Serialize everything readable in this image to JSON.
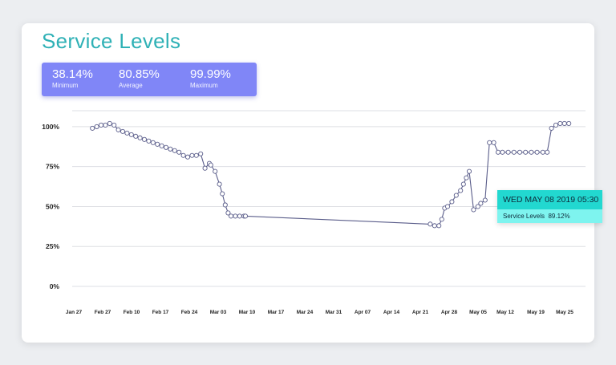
{
  "title": "Service Levels",
  "stats": [
    {
      "value": "38.14%",
      "label": "Minimum"
    },
    {
      "value": "80.85%",
      "label": "Average"
    },
    {
      "value": "99.99%",
      "label": "Maximum"
    }
  ],
  "tooltip": {
    "date": "WED MAY 08 2019 05:30",
    "series": "Service Levels",
    "value": "89.12%"
  },
  "colors": {
    "title": "#2fb1b6",
    "stats_bg": "#8086f7",
    "line": "#5a5d8a",
    "tooltip_head": "#22d8d0",
    "tooltip_body": "#7ef4ef"
  },
  "chart_data": {
    "type": "line",
    "title": "",
    "xlabel": "",
    "ylabel": "",
    "x_ticks": [
      "Jan 27",
      "Feb 27",
      "Feb 10",
      "Feb 17",
      "Feb 24",
      "Mar 03",
      "Mar 10",
      "Mar 17",
      "Mar 24",
      "Mar 31",
      "Apr 07",
      "Apr 14",
      "Apr 21",
      "Apr 28",
      "May 05",
      "May 12",
      "May 19",
      "May 25"
    ],
    "y_ticks": [
      "0%",
      "25%",
      "50%",
      "75%",
      "100%"
    ],
    "ylim": [
      0,
      110
    ],
    "x_domain": [
      0,
      17.6
    ],
    "grid": true,
    "series": [
      {
        "x": [
          0.7,
          0.85,
          1.0,
          1.15,
          1.3,
          1.45,
          1.6,
          1.75,
          1.9,
          2.05,
          2.2,
          2.35,
          2.5,
          2.65,
          2.8,
          2.95,
          3.1,
          3.25,
          3.4,
          3.55,
          3.7,
          3.85,
          4.0,
          4.15,
          4.3,
          4.45,
          4.6,
          4.75,
          4.8,
          4.95,
          5.1,
          5.2,
          5.3,
          5.4,
          5.5,
          5.65,
          5.8,
          5.95,
          6.0,
          12.4,
          12.55,
          12.7,
          12.8,
          12.9,
          13.0,
          13.15,
          13.3,
          13.45,
          13.55,
          13.65,
          13.75,
          13.9,
          14.05,
          14.15,
          14.3,
          14.45,
          14.6,
          14.75,
          14.9,
          15.1,
          15.3,
          15.5,
          15.7,
          15.9,
          16.1,
          16.3,
          16.45,
          16.6,
          16.75,
          16.9,
          17.05,
          17.2
        ],
        "y": [
          99,
          100,
          101,
          101,
          102,
          101,
          98,
          97,
          96,
          95,
          94,
          93,
          92,
          91,
          90,
          89,
          88,
          87,
          86,
          85,
          84,
          82,
          81,
          82,
          82,
          83,
          74,
          77,
          76,
          72,
          64,
          58,
          51,
          46,
          44,
          44,
          44,
          44,
          44,
          39,
          38,
          38,
          42,
          49,
          50,
          53,
          57,
          60,
          64,
          68,
          72,
          48,
          50,
          52,
          54,
          90,
          90,
          84,
          84,
          84,
          84,
          84,
          84,
          84,
          84,
          84,
          84,
          99,
          101,
          102,
          102,
          102
        ]
      }
    ]
  }
}
